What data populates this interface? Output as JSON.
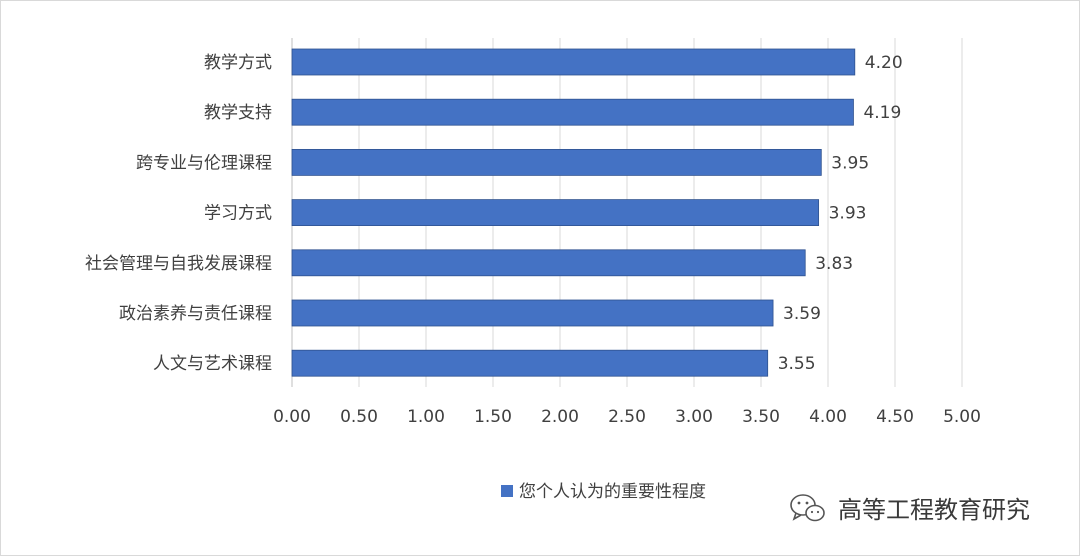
{
  "chart_data": {
    "type": "bar",
    "orientation": "horizontal",
    "categories": [
      "教学方式",
      "教学支持",
      "跨专业与伦理课程",
      "学习方式",
      "社会管理与自我发展课程",
      "政治素养与责任课程",
      "人文与艺术课程"
    ],
    "series": [
      {
        "name": "您个人认为的重要性程度",
        "values": [
          4.2,
          4.19,
          3.95,
          3.93,
          3.83,
          3.59,
          3.55
        ],
        "color": "#4472c4"
      }
    ],
    "x_ticks": [
      "0.00",
      "0.50",
      "1.00",
      "1.50",
      "2.00",
      "2.50",
      "3.00",
      "3.50",
      "4.00",
      "4.50",
      "5.00"
    ],
    "xlim": [
      0,
      5
    ],
    "value_format_decimals": 2,
    "grid": "vertical",
    "legend_position": "bottom"
  },
  "watermark": {
    "text": "高等工程教育研究",
    "icon": "wechat-icon"
  }
}
